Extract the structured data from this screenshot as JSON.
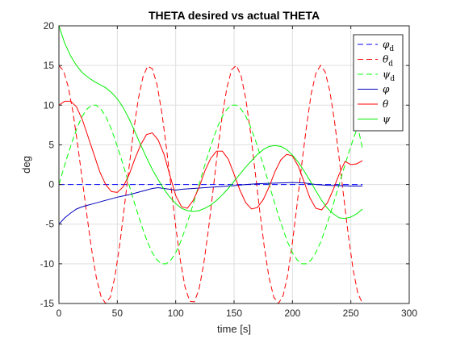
{
  "chart_data": {
    "type": "line",
    "title": "THETA desired vs actual THETA",
    "xlabel": "time [s]",
    "ylabel": "deg",
    "xlim": [
      0,
      300
    ],
    "ylim": [
      -15,
      20
    ],
    "xticks": [
      0,
      50,
      100,
      150,
      200,
      250,
      300
    ],
    "yticks": [
      -15,
      -10,
      -5,
      0,
      5,
      10,
      15,
      20
    ],
    "grid": true,
    "legend_position": "top-right",
    "series": [
      {
        "name": "φd",
        "symbol": "φ",
        "subscript": "d",
        "color": "#0000ff",
        "dash": "dashed",
        "x": [
          0,
          260
        ],
        "y": [
          0,
          0
        ]
      },
      {
        "name": "θd",
        "symbol": "θ",
        "subscript": "d",
        "color": "#ff0000",
        "dash": "dashed",
        "x": [
          0,
          4,
          8,
          12,
          16,
          20,
          24,
          28,
          32,
          36,
          40,
          44,
          48,
          52,
          56,
          60,
          64,
          68,
          72,
          76,
          80,
          84,
          88,
          92,
          96,
          100,
          104,
          108,
          112,
          116,
          120,
          124,
          128,
          132,
          136,
          140,
          144,
          148,
          152,
          156,
          160,
          164,
          168,
          172,
          176,
          180,
          184,
          188,
          192,
          196,
          200,
          204,
          208,
          212,
          216,
          220,
          224,
          228,
          232,
          236,
          240,
          244,
          248,
          252,
          256,
          260
        ],
        "y": [
          15,
          14.3,
          12.3,
          9.1,
          5.1,
          0.6,
          -3.9,
          -8.2,
          -11.7,
          -14.1,
          -15,
          -14.2,
          -11.6,
          -7.7,
          -2.9,
          2.1,
          6.8,
          10.8,
          13.6,
          14.9,
          14.6,
          12.6,
          9.2,
          4.7,
          -0.3,
          -5.3,
          -9.6,
          -12.9,
          -14.7,
          -14.8,
          -13.2,
          -10,
          -5.7,
          -0.7,
          4.3,
          8.8,
          12.3,
          14.5,
          15,
          13.7,
          10.8,
          6.6,
          1.7,
          -3.3,
          -8,
          -11.8,
          -14.2,
          -15,
          -14,
          -11.4,
          -7.3,
          -2.5,
          2.6,
          7.3,
          11.4,
          14,
          15,
          14.2,
          11.8,
          8,
          3.3,
          -1.7,
          -6.6,
          -10.8,
          -13.7,
          -15
        ]
      },
      {
        "name": "ψd",
        "symbol": "ψ",
        "subscript": "d",
        "color": "#00ff00",
        "dash": "dashed",
        "x": [
          0,
          4,
          8,
          12,
          16,
          20,
          24,
          28,
          32,
          36,
          40,
          44,
          48,
          52,
          56,
          60,
          64,
          68,
          72,
          76,
          80,
          84,
          88,
          92,
          96,
          100,
          104,
          108,
          112,
          116,
          120,
          124,
          128,
          132,
          136,
          140,
          144,
          148,
          152,
          156,
          160,
          164,
          168,
          172,
          176,
          180,
          184,
          188,
          192,
          196,
          200,
          204,
          208,
          212,
          216,
          220,
          224,
          228,
          232,
          236,
          240,
          244,
          248,
          252,
          256,
          260
        ],
        "y": [
          0,
          2,
          3.9,
          5.7,
          7.3,
          8.6,
          9.5,
          10,
          10,
          9.5,
          8.6,
          7.3,
          5.7,
          3.9,
          2,
          0,
          -2,
          -3.9,
          -5.7,
          -7.3,
          -8.6,
          -9.5,
          -10,
          -10,
          -9.5,
          -8.6,
          -7.3,
          -5.7,
          -3.9,
          -2,
          0,
          2,
          3.9,
          5.7,
          7.3,
          8.6,
          9.5,
          10,
          10,
          9.5,
          8.6,
          7.3,
          5.7,
          3.9,
          2,
          0,
          -2,
          -3.9,
          -5.7,
          -7.3,
          -8.6,
          -9.5,
          -10,
          -10,
          -9.5,
          -8.6,
          -7.3,
          -5.7,
          -3.9,
          -2,
          0,
          2,
          3.9,
          5.7,
          7.3,
          4.5
        ]
      },
      {
        "name": "φ",
        "symbol": "φ",
        "subscript": "",
        "color": "#0000bb",
        "dash": "solid",
        "x": [
          0,
          5,
          10,
          15,
          20,
          25,
          30,
          35,
          40,
          45,
          50,
          55,
          60,
          65,
          70,
          75,
          80,
          85,
          90,
          95,
          100,
          105,
          110,
          115,
          120,
          130,
          140,
          150,
          160,
          170,
          180,
          190,
          200,
          210,
          220,
          230,
          240,
          250,
          260
        ],
        "y": [
          -5,
          -4.2,
          -3.6,
          -3.1,
          -2.8,
          -2.6,
          -2.4,
          -2.2,
          -2,
          -1.8,
          -1.6,
          -1.45,
          -1.3,
          -1.1,
          -0.9,
          -0.7,
          -0.5,
          -0.4,
          -0.5,
          -0.6,
          -0.7,
          -0.6,
          -0.55,
          -0.5,
          -0.45,
          -0.35,
          -0.25,
          -0.15,
          0,
          0.1,
          0.15,
          0.2,
          0.25,
          0.2,
          0,
          -0.1,
          -0.15,
          -0.2,
          -0.2
        ]
      },
      {
        "name": "θ",
        "symbol": "θ",
        "subscript": "",
        "color": "#ff0000",
        "dash": "solid",
        "x": [
          0,
          5,
          10,
          15,
          20,
          25,
          30,
          35,
          40,
          45,
          50,
          55,
          60,
          65,
          70,
          75,
          80,
          85,
          90,
          95,
          100,
          105,
          110,
          115,
          120,
          125,
          130,
          135,
          140,
          145,
          150,
          155,
          160,
          165,
          170,
          175,
          180,
          185,
          190,
          195,
          200,
          205,
          210,
          215,
          220,
          225,
          230,
          235,
          240,
          245,
          250,
          255,
          260
        ],
        "y": [
          10,
          10.5,
          10.5,
          9.8,
          8.2,
          6,
          3.8,
          1.6,
          0,
          -0.9,
          -1,
          -0.3,
          1.2,
          3.2,
          5,
          6.3,
          6.5,
          5.6,
          3.8,
          1.2,
          -1.4,
          -2.8,
          -3,
          -2,
          -0.4,
          1.7,
          3.3,
          4.2,
          4.2,
          3.2,
          1.3,
          -0.7,
          -2.3,
          -3.1,
          -2.9,
          -1.9,
          -0.3,
          1.6,
          3.1,
          3.8,
          3.6,
          2.3,
          0.3,
          -1.7,
          -3,
          -3.2,
          -2.3,
          -0.6,
          1.3,
          2.9,
          2.5,
          2.6,
          3
        ]
      },
      {
        "name": "ψ",
        "symbol": "ψ",
        "subscript": "",
        "color": "#00ee00",
        "dash": "solid",
        "x": [
          0,
          5,
          10,
          15,
          20,
          25,
          30,
          35,
          40,
          45,
          50,
          55,
          60,
          65,
          70,
          75,
          80,
          85,
          90,
          95,
          100,
          105,
          110,
          115,
          120,
          125,
          130,
          135,
          140,
          145,
          150,
          155,
          160,
          165,
          170,
          175,
          180,
          185,
          190,
          195,
          200,
          205,
          210,
          215,
          220,
          225,
          230,
          235,
          240,
          245,
          250,
          255,
          260
        ],
        "y": [
          20,
          17.8,
          16.2,
          15,
          14.1,
          13.5,
          13,
          12.6,
          12.2,
          11.6,
          10.8,
          9.7,
          8.3,
          6.7,
          5,
          3.4,
          1.9,
          0.6,
          -0.6,
          -1.6,
          -2.4,
          -3,
          -3.3,
          -3.4,
          -3.3,
          -3,
          -2.6,
          -2,
          -1.3,
          -0.5,
          0.4,
          1.3,
          2.2,
          3,
          3.8,
          4.4,
          4.8,
          4.9,
          4.8,
          4.4,
          3.7,
          2.8,
          1.7,
          0.5,
          -0.8,
          -2,
          -3,
          -3.7,
          -4.2,
          -4.3,
          -4.1,
          -3.7,
          -3.1
        ]
      }
    ]
  }
}
